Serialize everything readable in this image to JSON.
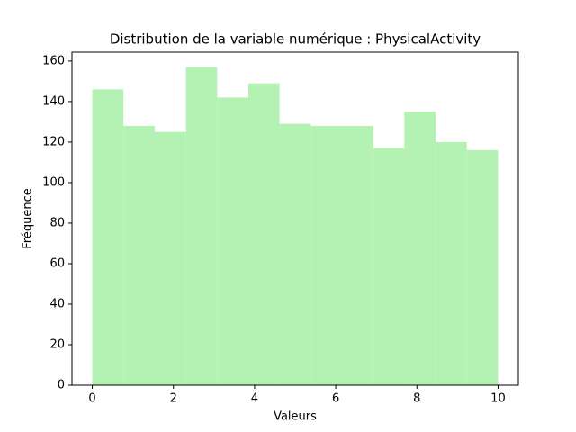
{
  "chart_data": {
    "type": "histogram",
    "title": "Distribution de la variable numérique : PhysicalActivity",
    "x_label": "Valeurs",
    "y_label": "Fréquence",
    "bins": [
      0,
      0.769,
      1.538,
      2.308,
      3.077,
      3.846,
      4.615,
      5.385,
      6.154,
      6.923,
      7.692,
      8.462,
      9.231,
      10
    ],
    "values": [
      146,
      128,
      125,
      157,
      142,
      149,
      129,
      128,
      128,
      117,
      135,
      120,
      116
    ],
    "color": "#b3f2b3",
    "xlim": [
      -0.5,
      10.5
    ],
    "xticks": [
      0,
      2,
      4,
      6,
      8,
      10
    ],
    "ylim": [
      0,
      164.4
    ],
    "yticks": [
      0,
      20,
      40,
      60,
      80,
      100,
      120,
      140,
      160
    ],
    "grid": false
  }
}
